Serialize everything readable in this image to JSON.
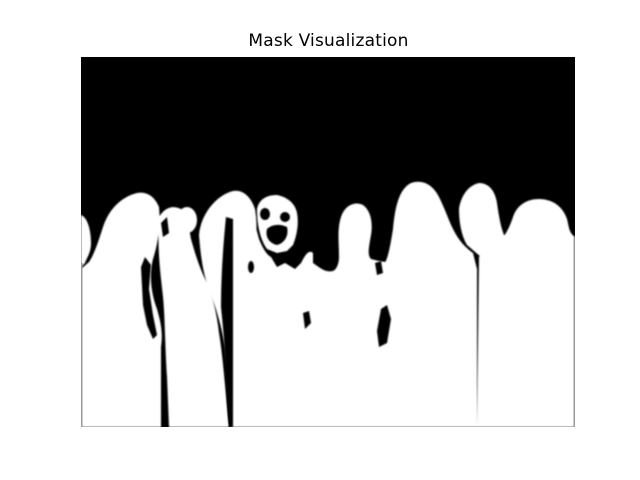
{
  "figure": {
    "title": "Mask Visualization"
  },
  "colors": {
    "background": "#000000",
    "foreground": "#ffffff",
    "page": "#ffffff"
  }
}
